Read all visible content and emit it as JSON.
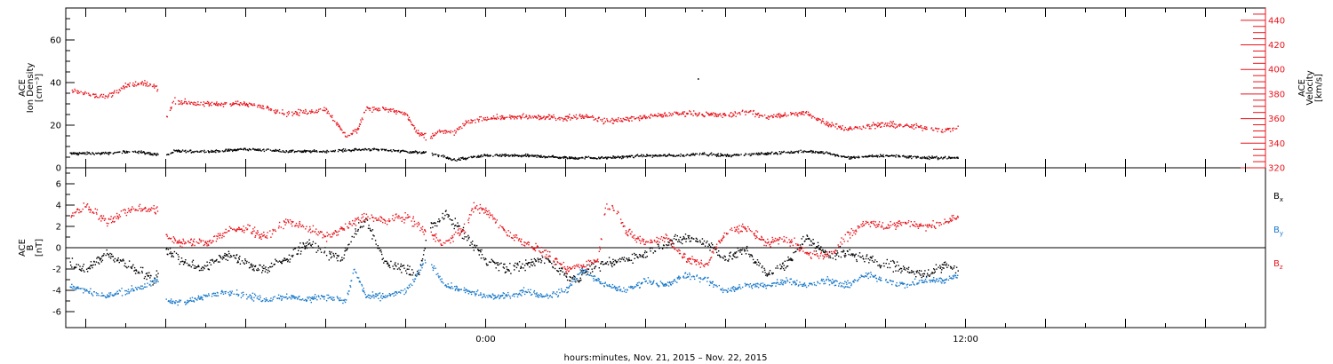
{
  "chart_data": [
    {
      "type": "scatter",
      "panel": "top",
      "ylabel": [
        "ACE",
        "Ion Density",
        "[cm⁻³]"
      ],
      "ylim": [
        0,
        75
      ],
      "yticks": [
        "0",
        "20",
        "40",
        "60"
      ],
      "right_ylabel": [
        "ACE",
        "Velocity",
        "[km/s]"
      ],
      "right_ylim": [
        320,
        450
      ],
      "right_yticks": [
        "320",
        "340",
        "360",
        "380",
        "400",
        "420",
        "440"
      ],
      "series": [
        {
          "axis": "left",
          "color": "#000000",
          "noise": 0.9,
          "x": [
            -10.4,
            -9.5,
            -8.8,
            -8.0,
            -7.8,
            -6.8,
            -6.0,
            -5.0,
            -4.0,
            -3.0,
            -2.0,
            -1.4,
            -0.8,
            0.0,
            1.0,
            2.0,
            3.0,
            4.0,
            5.0,
            5.3,
            6.0,
            7.0,
            8.0,
            8.6,
            9.0,
            10.0,
            11.0,
            11.6,
            11.8
          ],
          "y": [
            7,
            7,
            8,
            6,
            8,
            8,
            9,
            8,
            8,
            9,
            8,
            7,
            4,
            6,
            6,
            5,
            5,
            6,
            6,
            7,
            6,
            7,
            8,
            7,
            5,
            6,
            5,
            5,
            5
          ]
        },
        {
          "axis": "right",
          "color": "#e8141c",
          "noise": 3.2,
          "x": [
            -10.4,
            -10.0,
            -9.5,
            -9.0,
            -8.5,
            -8.2,
            -8.0,
            -7.8,
            -7.0,
            -6.2,
            -5.5,
            -5.0,
            -4.5,
            -4.0,
            -3.5,
            -3.2,
            -3.0,
            -2.5,
            -2.0,
            -1.7,
            -1.4,
            -1.2,
            -0.8,
            -0.5,
            0.0,
            1.0,
            2.0,
            2.5,
            3.0,
            4.0,
            5.0,
            6.0,
            6.5,
            7.0,
            8.0,
            8.5,
            9.0,
            10.0,
            11.0,
            11.5,
            11.8
          ],
          "y": [
            383,
            381,
            378,
            387,
            389,
            385,
            360,
            375,
            372,
            373,
            370,
            364,
            366,
            368,
            346,
            352,
            369,
            368,
            364,
            348,
            345,
            350,
            349,
            357,
            361,
            362,
            361,
            363,
            358,
            362,
            365,
            363,
            366,
            362,
            365,
            357,
            352,
            356,
            353,
            351,
            353
          ]
        },
        {
          "axis": "left",
          "color": "#000000",
          "noise": 0.0,
          "x": [
            5.4,
            5.3
          ],
          "y": [
            74,
            42
          ]
        }
      ]
    },
    {
      "type": "scatter",
      "panel": "bottom",
      "ylabel": [
        "ACE",
        "B",
        "[nT]"
      ],
      "ylim": [
        -7.5,
        7.5
      ],
      "yticks": [
        "-6",
        "-4",
        "-2",
        "0",
        "2",
        "4",
        "6"
      ],
      "legend_position": "right",
      "series": [
        {
          "name": "B",
          "subscript": "x",
          "color": "#000000",
          "noise": 0.7,
          "x": [
            -10.4,
            -10.0,
            -9.5,
            -9.0,
            -8.5,
            -8.3,
            -8.0,
            -7.5,
            -7.0,
            -6.5,
            -6.0,
            -5.5,
            -5.0,
            -4.5,
            -4.0,
            -3.6,
            -3.3,
            -3.0,
            -2.5,
            -2.0,
            -1.7,
            -1.4,
            -1.0,
            -0.8,
            -0.5,
            0.0,
            0.5,
            1.0,
            1.5,
            2.0,
            2.3,
            2.5,
            3.0,
            3.5,
            4.0,
            4.5,
            5.0,
            5.5,
            6.0,
            6.5,
            7.0,
            7.5,
            8.0,
            8.5,
            9.0,
            9.5,
            10.0,
            10.5,
            11.0,
            11.5,
            11.8
          ],
          "y": [
            -1.5,
            -2.0,
            -0.5,
            -1.5,
            -2.5,
            -3.0,
            0.0,
            -1.5,
            -1.8,
            -0.5,
            -1.5,
            -2.0,
            -1.0,
            0.5,
            -0.5,
            -1.0,
            1.5,
            2.5,
            -1.5,
            -2.0,
            -2.5,
            2.0,
            3.0,
            2.5,
            1.0,
            -1.0,
            -2.0,
            -1.5,
            -1.0,
            -2.5,
            -3.0,
            -2.0,
            -1.5,
            -1.0,
            -0.5,
            0.5,
            1.0,
            0.5,
            -1.0,
            0.0,
            -2.5,
            -1.5,
            1.0,
            -0.5,
            -0.5,
            -1.0,
            -1.5,
            -2.0,
            -2.5,
            -1.5,
            -2.0
          ]
        },
        {
          "name": "B",
          "subscript": "y",
          "color": "#1878c8",
          "noise": 0.45,
          "x": [
            -10.4,
            -10.0,
            -9.5,
            -9.0,
            -8.5,
            -8.2,
            -8.0,
            -7.5,
            -7.0,
            -6.5,
            -6.0,
            -5.5,
            -5.0,
            -4.5,
            -4.0,
            -3.5,
            -3.3,
            -3.0,
            -2.5,
            -2.0,
            -1.8,
            -1.5,
            -1.0,
            -0.5,
            0.0,
            0.5,
            1.0,
            1.5,
            2.0,
            2.4,
            2.8,
            3.0,
            3.5,
            4.0,
            4.5,
            5.0,
            5.5,
            6.0,
            6.5,
            7.0,
            7.5,
            8.0,
            8.5,
            9.0,
            9.5,
            10.0,
            10.5,
            11.0,
            11.5,
            11.8
          ],
          "y": [
            -3.5,
            -4.0,
            -4.5,
            -4.0,
            -3.5,
            -3.0,
            -5.0,
            -5.0,
            -4.5,
            -4.0,
            -4.5,
            -4.8,
            -4.5,
            -4.8,
            -4.5,
            -5.0,
            -2.0,
            -4.5,
            -4.5,
            -4.0,
            -3.0,
            -1.0,
            -3.5,
            -4.0,
            -4.5,
            -4.5,
            -4.0,
            -4.5,
            -4.0,
            -2.0,
            -3.0,
            -3.5,
            -4.0,
            -3.0,
            -3.5,
            -2.5,
            -3.0,
            -4.0,
            -3.5,
            -3.5,
            -3.0,
            -3.5,
            -3.0,
            -3.5,
            -2.5,
            -3.0,
            -3.5,
            -3.0,
            -3.0,
            -2.5
          ]
        },
        {
          "name": "B",
          "subscript": "z",
          "color": "#e8141c",
          "noise": 0.6,
          "x": [
            -10.4,
            -10.0,
            -9.5,
            -9.0,
            -8.5,
            -8.2,
            -8.0,
            -7.5,
            -7.0,
            -6.5,
            -6.0,
            -5.5,
            -5.0,
            -4.5,
            -4.0,
            -3.5,
            -3.0,
            -2.5,
            -2.0,
            -1.5,
            -1.0,
            -0.5,
            -0.3,
            0.0,
            0.5,
            1.0,
            1.5,
            2.0,
            2.5,
            2.8,
            3.0,
            3.3,
            3.5,
            4.0,
            4.5,
            5.0,
            5.5,
            6.0,
            6.5,
            7.0,
            7.5,
            8.0,
            8.5,
            9.0,
            9.5,
            10.0,
            10.5,
            11.0,
            11.5,
            11.8
          ],
          "y": [
            3.0,
            4.0,
            2.5,
            3.5,
            3.8,
            3.5,
            1.0,
            0.5,
            0.5,
            1.5,
            2.0,
            1.0,
            2.5,
            2.0,
            1.0,
            2.0,
            3.0,
            2.5,
            3.0,
            1.5,
            0.5,
            2.0,
            4.0,
            3.5,
            1.5,
            0.5,
            -0.5,
            -2.0,
            -1.5,
            -1.0,
            4.0,
            3.5,
            1.5,
            0.5,
            1.0,
            -1.0,
            -1.5,
            1.5,
            2.0,
            0.5,
            1.0,
            -0.5,
            -0.8,
            1.0,
            2.5,
            2.0,
            2.5,
            2.0,
            2.5,
            3.0
          ]
        }
      ]
    }
  ],
  "xaxis": {
    "xlim": [
      -10.5,
      19.5
    ],
    "tick_labels": [
      {
        "x": 0,
        "label": "0:00"
      },
      {
        "x": 12,
        "label": "12:00"
      }
    ],
    "xlabel": "hours:minutes, Nov. 21, 2015 – Nov. 22, 2015"
  }
}
